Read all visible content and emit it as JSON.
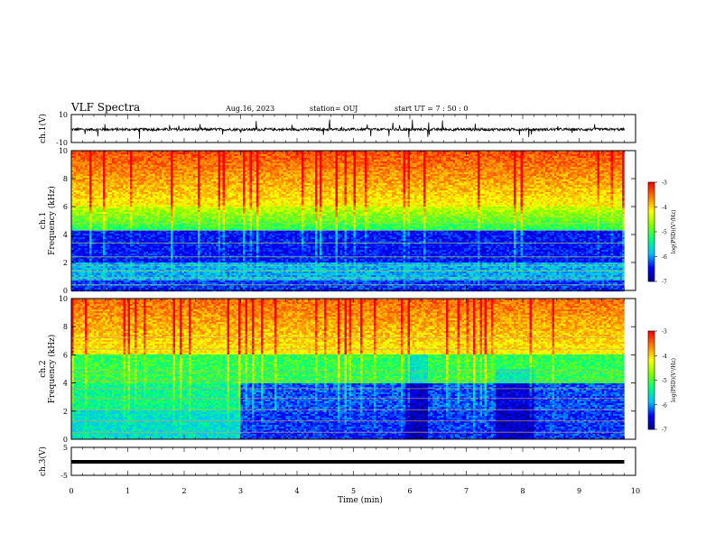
{
  "header": {
    "title": "VLF Spectra",
    "date": "Aug.16, 2023",
    "station": "station= OUJ",
    "start": "start  UT =   7 : 50 : 0"
  },
  "chart_data": [
    {
      "type": "line",
      "panel": "waveform-ch1",
      "ylabel": "ch.1(V)",
      "yticks": [
        "10",
        "-10"
      ],
      "ylim": [
        -10,
        10
      ],
      "xlim": [
        0,
        10
      ],
      "note": "noisy waveform centered near 0 V, small spikes, ends near 9.8 min"
    },
    {
      "type": "heatmap",
      "panel": "spectrogram-ch1",
      "ylabel": "ch.1\nFrequency (kHz)",
      "yticks": [
        "0",
        "2",
        "4",
        "6",
        "8",
        "10"
      ],
      "ylim": [
        0,
        10
      ],
      "xlim": [
        0,
        10
      ],
      "colorbar": {
        "label": "log(PSD)(V²/Hz)",
        "ticks": [
          "-3",
          "-4",
          "-5",
          "-6",
          "-7"
        ],
        "range": [
          -7,
          -3
        ]
      },
      "colors": [
        "#00007f",
        "#0000ff",
        "#00bfff",
        "#00ff7f",
        "#7fff00",
        "#ffff00",
        "#ff7f00",
        "#ff0000"
      ]
    },
    {
      "type": "heatmap",
      "panel": "spectrogram-ch2",
      "ylabel": "ch.2\nFrequency (kHz)",
      "yticks": [
        "0",
        "2",
        "4",
        "6",
        "8",
        "10"
      ],
      "ylim": [
        0,
        10
      ],
      "xlim": [
        0,
        10
      ],
      "colorbar": {
        "label": "log(PSD)(V²/Hz)",
        "ticks": [
          "-3",
          "-4",
          "-5",
          "-6",
          "-7"
        ],
        "range": [
          -7,
          -3
        ]
      },
      "colors": [
        "#00007f",
        "#0000ff",
        "#00bfff",
        "#00ff7f",
        "#7fff00",
        "#ffff00",
        "#ff7f00",
        "#ff0000"
      ]
    },
    {
      "type": "line",
      "panel": "waveform-ch3",
      "ylabel": "ch.3(V)",
      "yticks": [
        "5",
        "-5"
      ],
      "ylim": [
        -5,
        5
      ],
      "xlim": [
        0,
        10
      ],
      "note": "flat thick line near 0 V"
    }
  ],
  "xaxis": {
    "label": "Time (min)",
    "ticks": [
      "0",
      "1",
      "2",
      "3",
      "4",
      "5",
      "6",
      "7",
      "8",
      "9",
      "10"
    ]
  }
}
